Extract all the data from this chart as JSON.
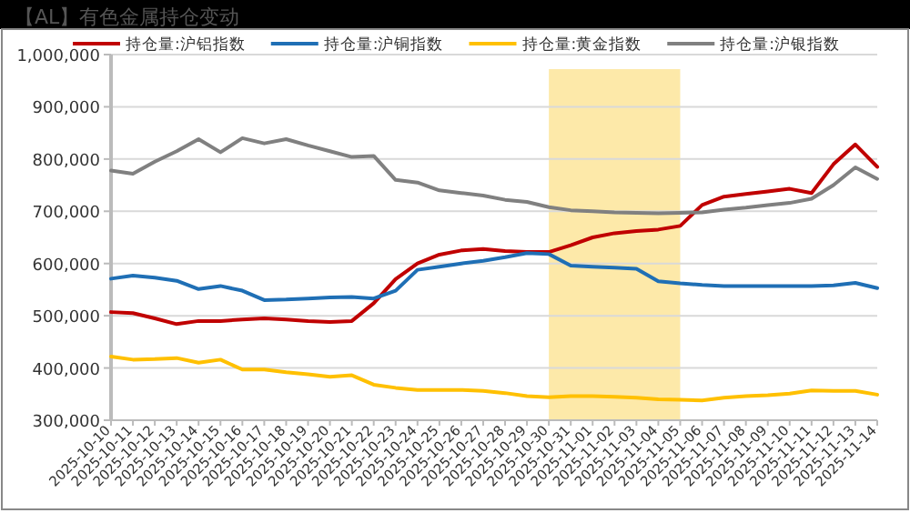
{
  "chart_data": {
    "type": "line",
    "title": "【AL】有色金属持仓变动",
    "categories": [
      "2025-10-10",
      "2025-10-11",
      "2025-10-12",
      "2025-10-13",
      "2025-10-14",
      "2025-10-15",
      "2025-10-16",
      "2025-10-17",
      "2025-10-18",
      "2025-10-19",
      "2025-10-20",
      "2025-10-21",
      "2025-10-22",
      "2025-10-23",
      "2025-10-24",
      "2025-10-25",
      "2025-10-26",
      "2025-10-27",
      "2025-10-28",
      "2025-10-29",
      "2025-10-30",
      "2025-10-31",
      "2025-11-01",
      "2025-11-02",
      "2025-11-03",
      "2025-11-04",
      "2025-11-05",
      "2025-11-06",
      "2025-11-07",
      "2025-11-08",
      "2025-11-09",
      "2025-11-10",
      "2025-11-11",
      "2025-11-12",
      "2025-11-13",
      "2025-11-14"
    ],
    "series": [
      {
        "name": "持仓量:沪铝指数",
        "color": "#c00000",
        "values": [
          507000,
          505000,
          495000,
          484000,
          490000,
          490000,
          493000,
          495000,
          493000,
          490000,
          488000,
          490000,
          524000,
          570000,
          600000,
          617000,
          625000,
          628000,
          624000,
          622000,
          622000,
          635000,
          650000,
          658000,
          662000,
          665000,
          672000,
          712000,
          728000,
          733000,
          738000,
          743000,
          735000,
          790000,
          828000,
          785000
        ]
      },
      {
        "name": "持仓量:沪铜指数",
        "color": "#1f6fb5",
        "values": [
          571000,
          577000,
          573000,
          567000,
          551000,
          557000,
          548000,
          530000,
          531000,
          533000,
          535000,
          536000,
          533000,
          548000,
          588000,
          594000,
          600000,
          605000,
          612000,
          620000,
          618000,
          596000,
          594000,
          592000,
          590000,
          566000,
          562000,
          559000,
          557000,
          557000,
          557000,
          557000,
          557000,
          558000,
          563000,
          553000
        ]
      },
      {
        "name": "持仓量:黄金指数",
        "color": "#ffc000",
        "values": [
          422000,
          416000,
          417000,
          419000,
          410000,
          416000,
          397000,
          397000,
          392000,
          388000,
          383000,
          386000,
          368000,
          362000,
          358000,
          358000,
          358000,
          356000,
          352000,
          346000,
          344000,
          346000,
          346000,
          345000,
          343000,
          340000,
          339000,
          338000,
          343000,
          346000,
          348000,
          351000,
          357000,
          356000,
          356000,
          349000
        ]
      },
      {
        "name": "持仓量:沪银指数",
        "color": "#808080",
        "values": [
          778000,
          772000,
          795000,
          815000,
          838000,
          813000,
          840000,
          830000,
          838000,
          826000,
          815000,
          804000,
          806000,
          760000,
          755000,
          740000,
          735000,
          730000,
          722000,
          718000,
          708000,
          702000,
          700000,
          698000,
          697000,
          696000,
          697000,
          698000,
          703000,
          707000,
          712000,
          716000,
          724000,
          750000,
          784000,
          762000
        ]
      }
    ],
    "ylim": [
      300000,
      1000000
    ],
    "yticks": [
      {
        "value": 300000,
        "label": "300,000"
      },
      {
        "value": 400000,
        "label": "400,000"
      },
      {
        "value": 500000,
        "label": "500,000"
      },
      {
        "value": 600000,
        "label": "600,000"
      },
      {
        "value": 700000,
        "label": "700,000"
      },
      {
        "value": 800000,
        "label": "800,000"
      },
      {
        "value": 900000,
        "label": "900,000"
      },
      {
        "value": 1000000,
        "label": "1,000,000"
      }
    ],
    "bands": [
      {
        "axis": "x",
        "from": "2025-10-30",
        "to": "2025-11-05",
        "color": "#fde9a9"
      }
    ],
    "grid": "y",
    "legend": "top",
    "marker": "none",
    "line_style": "solid"
  }
}
